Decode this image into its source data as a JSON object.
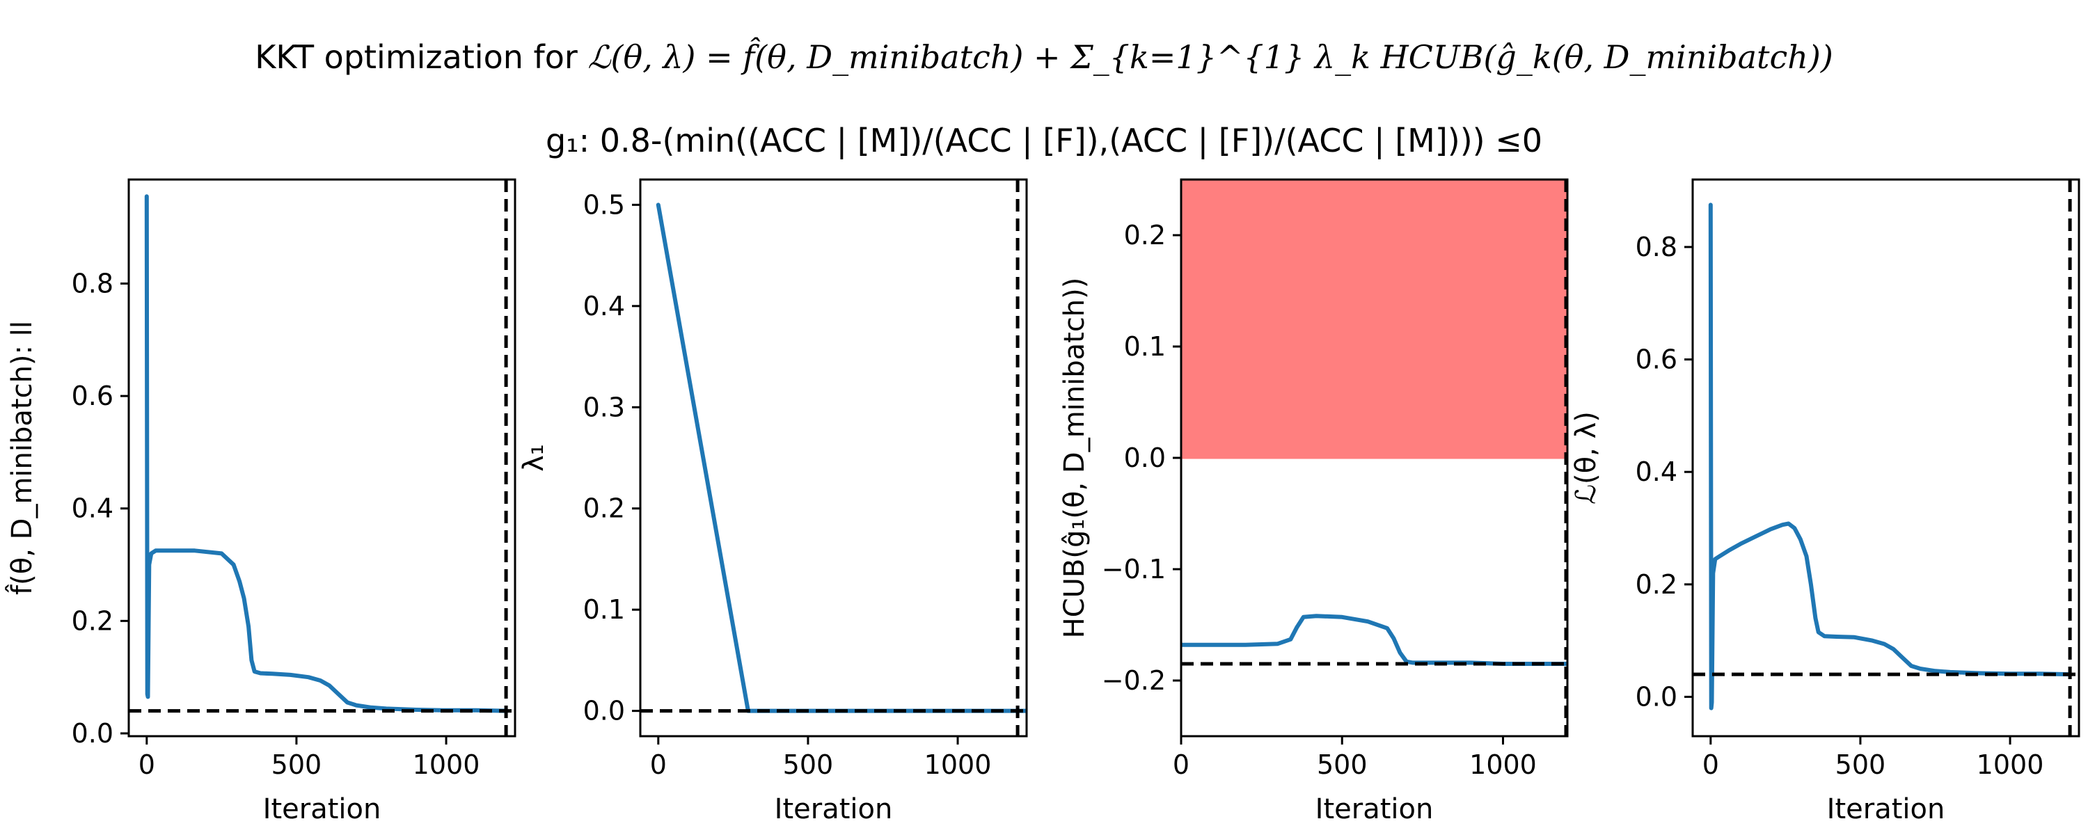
{
  "figure": {
    "title_line1_prefix": "KKT optimization for ",
    "title_line1_formula": "ℒ(θ, λ) = f̂(θ, D_minibatch) + Σ_{k=1}^{1} λ_k HCUB(ĝ_k(θ, D_minibatch))",
    "title_line2": "g₁: 0.8-(min((ACC | [M])/(ACC | [F]),(ACC | [F])/(ACC | [M]))) ≤0"
  },
  "colors": {
    "series": "#1f77b4",
    "infeasible_region": "#ff7f7f",
    "reference": "#000000"
  },
  "chart_data": [
    {
      "type": "line",
      "ylabel": "f̂(θ, D_minibatch): ll",
      "xlabel": "Iteration",
      "xlim": [
        -60,
        1230
      ],
      "ylim": [
        -0.005,
        0.985
      ],
      "xticks": [
        0,
        500,
        1000
      ],
      "yticks": [
        0.0,
        0.2,
        0.4,
        0.6,
        0.8
      ],
      "ytick_labels": [
        "0.0",
        "0.2",
        "0.4",
        "0.6",
        "0.8"
      ],
      "hline": 0.04,
      "vline": 1200,
      "series": [
        {
          "x": [
            0,
            2,
            4,
            8,
            15,
            30,
            60,
            100,
            160,
            250,
            290,
            310,
            325,
            340,
            350,
            360,
            380,
            420,
            480,
            540,
            580,
            610,
            640,
            670,
            700,
            750,
            800,
            900,
            1000,
            1100,
            1200
          ],
          "y": [
            0.955,
            0.07,
            0.065,
            0.3,
            0.32,
            0.325,
            0.325,
            0.325,
            0.325,
            0.32,
            0.3,
            0.27,
            0.24,
            0.19,
            0.13,
            0.11,
            0.107,
            0.106,
            0.104,
            0.1,
            0.094,
            0.085,
            0.07,
            0.055,
            0.05,
            0.046,
            0.044,
            0.042,
            0.041,
            0.041,
            0.04
          ]
        }
      ]
    },
    {
      "type": "line",
      "ylabel": "λ₁",
      "xlabel": "Iteration",
      "xlim": [
        -60,
        1230
      ],
      "ylim": [
        -0.025,
        0.525
      ],
      "xticks": [
        0,
        500,
        1000
      ],
      "yticks": [
        0.0,
        0.1,
        0.2,
        0.3,
        0.4,
        0.5
      ],
      "ytick_labels": [
        "0.0",
        "0.1",
        "0.2",
        "0.3",
        "0.4",
        "0.5"
      ],
      "hline": 0.0,
      "vline": 1200,
      "series": [
        {
          "x": [
            0,
            300,
            1230
          ],
          "y": [
            0.5,
            0.0,
            0.0
          ]
        }
      ]
    },
    {
      "type": "line",
      "ylabel": "HCUB(ĝ₁(θ, D_minibatch))",
      "xlabel": "Iteration",
      "xlim": [
        0,
        1200
      ],
      "ylim": [
        -0.25,
        0.25
      ],
      "xticks": [
        0,
        500,
        1000
      ],
      "yticks": [
        -0.2,
        -0.1,
        0.0,
        0.1,
        0.2
      ],
      "ytick_labels": [
        "−0.2",
        "−0.1",
        "0.0",
        "0.1",
        "0.2"
      ],
      "infeasible_region": [
        0.0,
        0.25
      ],
      "hline": -0.185,
      "vline": 1200,
      "series": [
        {
          "x": [
            0,
            30,
            100,
            200,
            300,
            340,
            360,
            380,
            420,
            500,
            580,
            640,
            660,
            680,
            700,
            720,
            800,
            900,
            1000,
            1100,
            1200
          ],
          "y": [
            -0.168,
            -0.168,
            -0.168,
            -0.168,
            -0.167,
            -0.163,
            -0.152,
            -0.143,
            -0.142,
            -0.143,
            -0.147,
            -0.153,
            -0.162,
            -0.175,
            -0.183,
            -0.184,
            -0.184,
            -0.184,
            -0.185,
            -0.185,
            -0.185
          ]
        }
      ]
    },
    {
      "type": "line",
      "ylabel": "ℒ(θ, λ)",
      "xlabel": "Iteration",
      "xlim": [
        -60,
        1230
      ],
      "ylim": [
        -0.07,
        0.92
      ],
      "xticks": [
        0,
        500,
        1000
      ],
      "yticks": [
        0.0,
        0.2,
        0.4,
        0.6,
        0.8
      ],
      "ytick_labels": [
        "0.0",
        "0.2",
        "0.4",
        "0.6",
        "0.8"
      ],
      "hline": 0.04,
      "vline": 1200,
      "series": [
        {
          "x": [
            0,
            2,
            4,
            8,
            15,
            30,
            60,
            100,
            150,
            200,
            240,
            260,
            280,
            300,
            320,
            335,
            350,
            360,
            380,
            420,
            480,
            540,
            580,
            610,
            640,
            670,
            700,
            750,
            800,
            900,
            1000,
            1100,
            1200
          ],
          "y": [
            0.875,
            -0.02,
            -0.01,
            0.22,
            0.245,
            0.25,
            0.26,
            0.272,
            0.285,
            0.298,
            0.306,
            0.308,
            0.3,
            0.28,
            0.25,
            0.2,
            0.14,
            0.115,
            0.108,
            0.107,
            0.106,
            0.1,
            0.094,
            0.085,
            0.07,
            0.055,
            0.05,
            0.046,
            0.044,
            0.042,
            0.041,
            0.041,
            0.04
          ]
        }
      ]
    }
  ]
}
